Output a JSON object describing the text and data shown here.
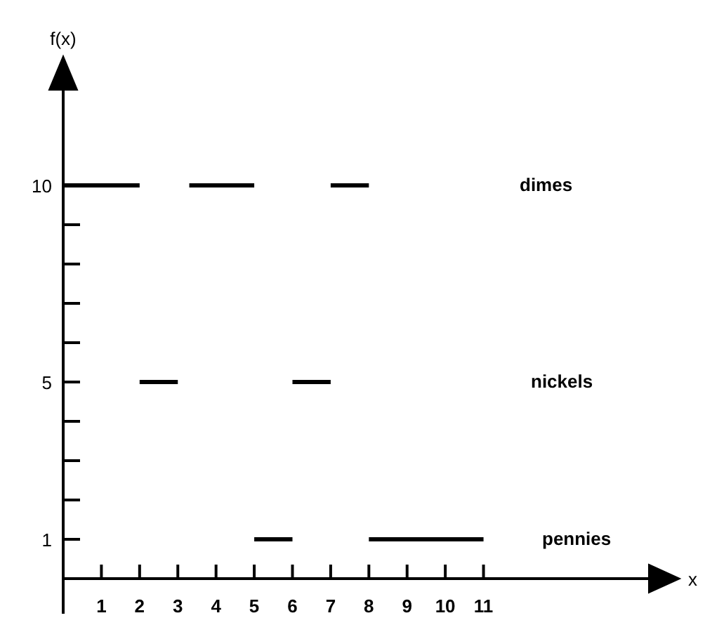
{
  "chart_data": {
    "type": "line",
    "ylabel": "f(x)",
    "xlabel": "x",
    "xlim": [
      0,
      15.4
    ],
    "ylim": [
      0,
      12.5
    ],
    "xticks": [
      1,
      2,
      3,
      4,
      5,
      6,
      7,
      8,
      9,
      10,
      11
    ],
    "yticks": [
      {
        "value": 1,
        "label": "1"
      },
      {
        "value": 2,
        "label": null
      },
      {
        "value": 3,
        "label": null
      },
      {
        "value": 4,
        "label": null
      },
      {
        "value": 5,
        "label": "5"
      },
      {
        "value": 6,
        "label": null
      },
      {
        "value": 7,
        "label": null
      },
      {
        "value": 8,
        "label": null
      },
      {
        "value": 9,
        "label": null
      },
      {
        "value": 10,
        "label": "10"
      }
    ],
    "grid": false,
    "marker": "none",
    "line_style": "solid",
    "series": [
      {
        "name": "dimes",
        "color": "#000000",
        "x": [
          0,
          2,
          2.5,
          3.3,
          5,
          6,
          7,
          8
        ],
        "values": [
          10,
          10,
          null,
          10,
          10,
          null,
          10,
          10
        ]
      },
      {
        "name": "nickels",
        "color": "#000000",
        "x": [
          2,
          3,
          4,
          6,
          7
        ],
        "values": [
          5,
          5,
          null,
          5,
          5
        ]
      },
      {
        "name": "pennies",
        "color": "#000000",
        "x": [
          5,
          6,
          7,
          8,
          11
        ],
        "values": [
          1,
          1,
          null,
          1,
          1
        ]
      }
    ]
  }
}
